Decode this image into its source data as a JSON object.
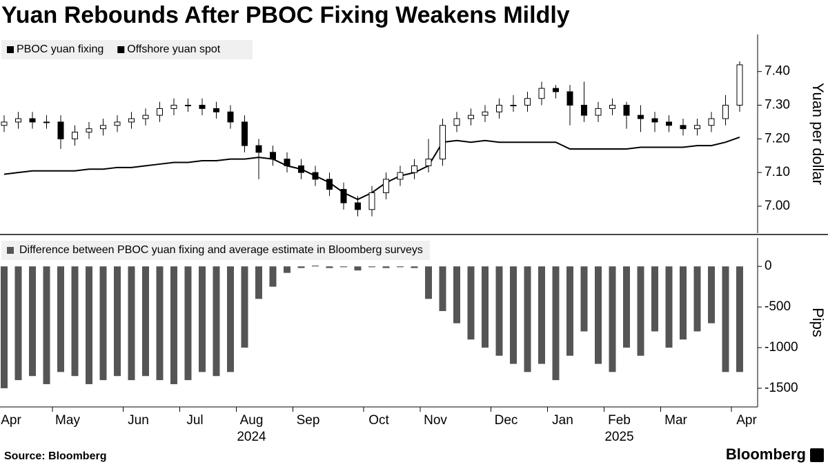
{
  "title": "Yuan Rebounds After PBOC Fixing Weakens Mildly",
  "source": "Source: Bloomberg",
  "brand": "Bloomberg",
  "chart_data": [
    {
      "type": "candlestick",
      "y_label": "Yuan per dollar",
      "ylim": [
        6.92,
        7.51
      ],
      "yticks": [
        {
          "value": 7,
          "label": "7.00"
        },
        {
          "value": 7.1,
          "label": "7.10"
        },
        {
          "value": 7.2,
          "label": "7.20"
        },
        {
          "value": 7.3,
          "label": "7.30"
        },
        {
          "value": 7.4,
          "label": "7.40"
        }
      ],
      "series": [
        {
          "name": "PBOC yuan fixing",
          "type": "line",
          "color": "#000000",
          "values": [
            7.095,
            7.1,
            7.105,
            7.105,
            7.105,
            7.105,
            7.11,
            7.11,
            7.115,
            7.115,
            7.12,
            7.125,
            7.13,
            7.13,
            7.135,
            7.135,
            7.14,
            7.14,
            7.145,
            7.14,
            7.12,
            7.11,
            7.09,
            7.07,
            7.04,
            7.02,
            7.04,
            7.07,
            7.09,
            7.1,
            7.12,
            7.19,
            7.195,
            7.19,
            7.195,
            7.19,
            7.19,
            7.19,
            7.19,
            7.19,
            7.17,
            7.17,
            7.17,
            7.17,
            7.17,
            7.175,
            7.175,
            7.175,
            7.175,
            7.18,
            7.18,
            7.19,
            7.205
          ]
        },
        {
          "name": "Offshore yuan spot",
          "type": "candlestick",
          "color": "#000000",
          "open": [
            7.24,
            7.25,
            7.26,
            7.25,
            7.25,
            7.2,
            7.22,
            7.23,
            7.24,
            7.25,
            7.26,
            7.27,
            7.29,
            7.3,
            7.3,
            7.29,
            7.28,
            7.25,
            7.18,
            7.16,
            7.14,
            7.12,
            7.1,
            7.08,
            7.05,
            7.01,
            6.99,
            7.04,
            7.08,
            7.1,
            7.12,
            7.14,
            7.24,
            7.26,
            7.27,
            7.28,
            7.3,
            7.3,
            7.32,
            7.35,
            7.34,
            7.3,
            7.27,
            7.29,
            7.3,
            7.27,
            7.26,
            7.25,
            7.24,
            7.23,
            7.24,
            7.26,
            7.3
          ],
          "high": [
            7.27,
            7.28,
            7.28,
            7.27,
            7.27,
            7.24,
            7.25,
            7.26,
            7.27,
            7.28,
            7.29,
            7.31,
            7.32,
            7.32,
            7.32,
            7.31,
            7.3,
            7.27,
            7.2,
            7.18,
            7.16,
            7.14,
            7.12,
            7.1,
            7.07,
            7.03,
            7.06,
            7.1,
            7.12,
            7.14,
            7.2,
            7.26,
            7.28,
            7.29,
            7.3,
            7.32,
            7.33,
            7.34,
            7.37,
            7.36,
            7.36,
            7.37,
            7.31,
            7.32,
            7.31,
            7.3,
            7.28,
            7.27,
            7.26,
            7.26,
            7.28,
            7.33,
            7.43
          ],
          "low": [
            7.22,
            7.23,
            7.23,
            7.23,
            7.17,
            7.18,
            7.2,
            7.21,
            7.22,
            7.23,
            7.24,
            7.25,
            7.27,
            7.28,
            7.27,
            7.26,
            7.23,
            7.16,
            7.08,
            7.12,
            7.1,
            7.08,
            7.06,
            7.03,
            6.99,
            6.97,
            6.97,
            7.02,
            7.06,
            7.08,
            7.1,
            7.12,
            7.22,
            7.24,
            7.25,
            7.26,
            7.28,
            7.28,
            7.3,
            7.32,
            7.24,
            7.25,
            7.25,
            7.27,
            7.23,
            7.22,
            7.22,
            7.22,
            7.21,
            7.21,
            7.22,
            7.24,
            7.28
          ],
          "close": [
            7.25,
            7.26,
            7.25,
            7.25,
            7.2,
            7.22,
            7.23,
            7.24,
            7.25,
            7.26,
            7.27,
            7.29,
            7.3,
            7.3,
            7.29,
            7.28,
            7.25,
            7.18,
            7.16,
            7.14,
            7.12,
            7.1,
            7.08,
            7.05,
            7.01,
            6.99,
            7.04,
            7.08,
            7.1,
            7.12,
            7.14,
            7.24,
            7.26,
            7.27,
            7.28,
            7.3,
            7.3,
            7.32,
            7.35,
            7.34,
            7.3,
            7.27,
            7.29,
            7.3,
            7.27,
            7.26,
            7.25,
            7.24,
            7.23,
            7.24,
            7.26,
            7.3,
            7.42
          ]
        }
      ]
    },
    {
      "type": "bar",
      "y_label": "Pips",
      "ylim": [
        -1730,
        350
      ],
      "yticks": [
        -1500,
        -1000,
        -500,
        0
      ],
      "categories": [
        "Apr",
        null,
        null,
        null,
        "May",
        null,
        null,
        null,
        null,
        "Jun",
        null,
        null,
        null,
        "Jul",
        null,
        null,
        null,
        "Aug",
        null,
        null,
        null,
        "Sep",
        null,
        null,
        null,
        null,
        "Oct",
        null,
        null,
        null,
        "Nov",
        null,
        null,
        null,
        null,
        "Dec",
        null,
        null,
        null,
        "Jan",
        null,
        null,
        null,
        "Feb",
        null,
        null,
        null,
        "Mar",
        null,
        null,
        null,
        null,
        "Apr"
      ],
      "category_groups": [
        null,
        null,
        null,
        null,
        null,
        null,
        null,
        null,
        null,
        null,
        null,
        null,
        null,
        null,
        null,
        null,
        null,
        "2024",
        null,
        null,
        null,
        null,
        null,
        null,
        null,
        null,
        null,
        null,
        null,
        null,
        null,
        null,
        null,
        null,
        null,
        null,
        null,
        null,
        null,
        null,
        null,
        null,
        null,
        "2025",
        null,
        null,
        null,
        null,
        null,
        null,
        null,
        null,
        null
      ],
      "series": [
        {
          "name": "Difference between PBOC yuan fixing and average estimate in Bloomberg surveys",
          "color": "#555555",
          "values": [
            -1500,
            -1400,
            -1350,
            -1450,
            -1300,
            -1350,
            -1450,
            -1400,
            -1350,
            -1400,
            -1350,
            -1400,
            -1450,
            -1400,
            -1300,
            -1350,
            -1300,
            -1000,
            -400,
            -250,
            -80,
            -20,
            10,
            -20,
            -10,
            -50,
            -10,
            -20,
            -10,
            -20,
            -400,
            -550,
            -700,
            -900,
            -1000,
            -1100,
            -1200,
            -1300,
            -1200,
            -1400,
            -1100,
            -800,
            -1200,
            -1300,
            -1000,
            -1100,
            -800,
            -1000,
            -900,
            -800,
            -700,
            -1300,
            -1300
          ]
        }
      ]
    }
  ]
}
